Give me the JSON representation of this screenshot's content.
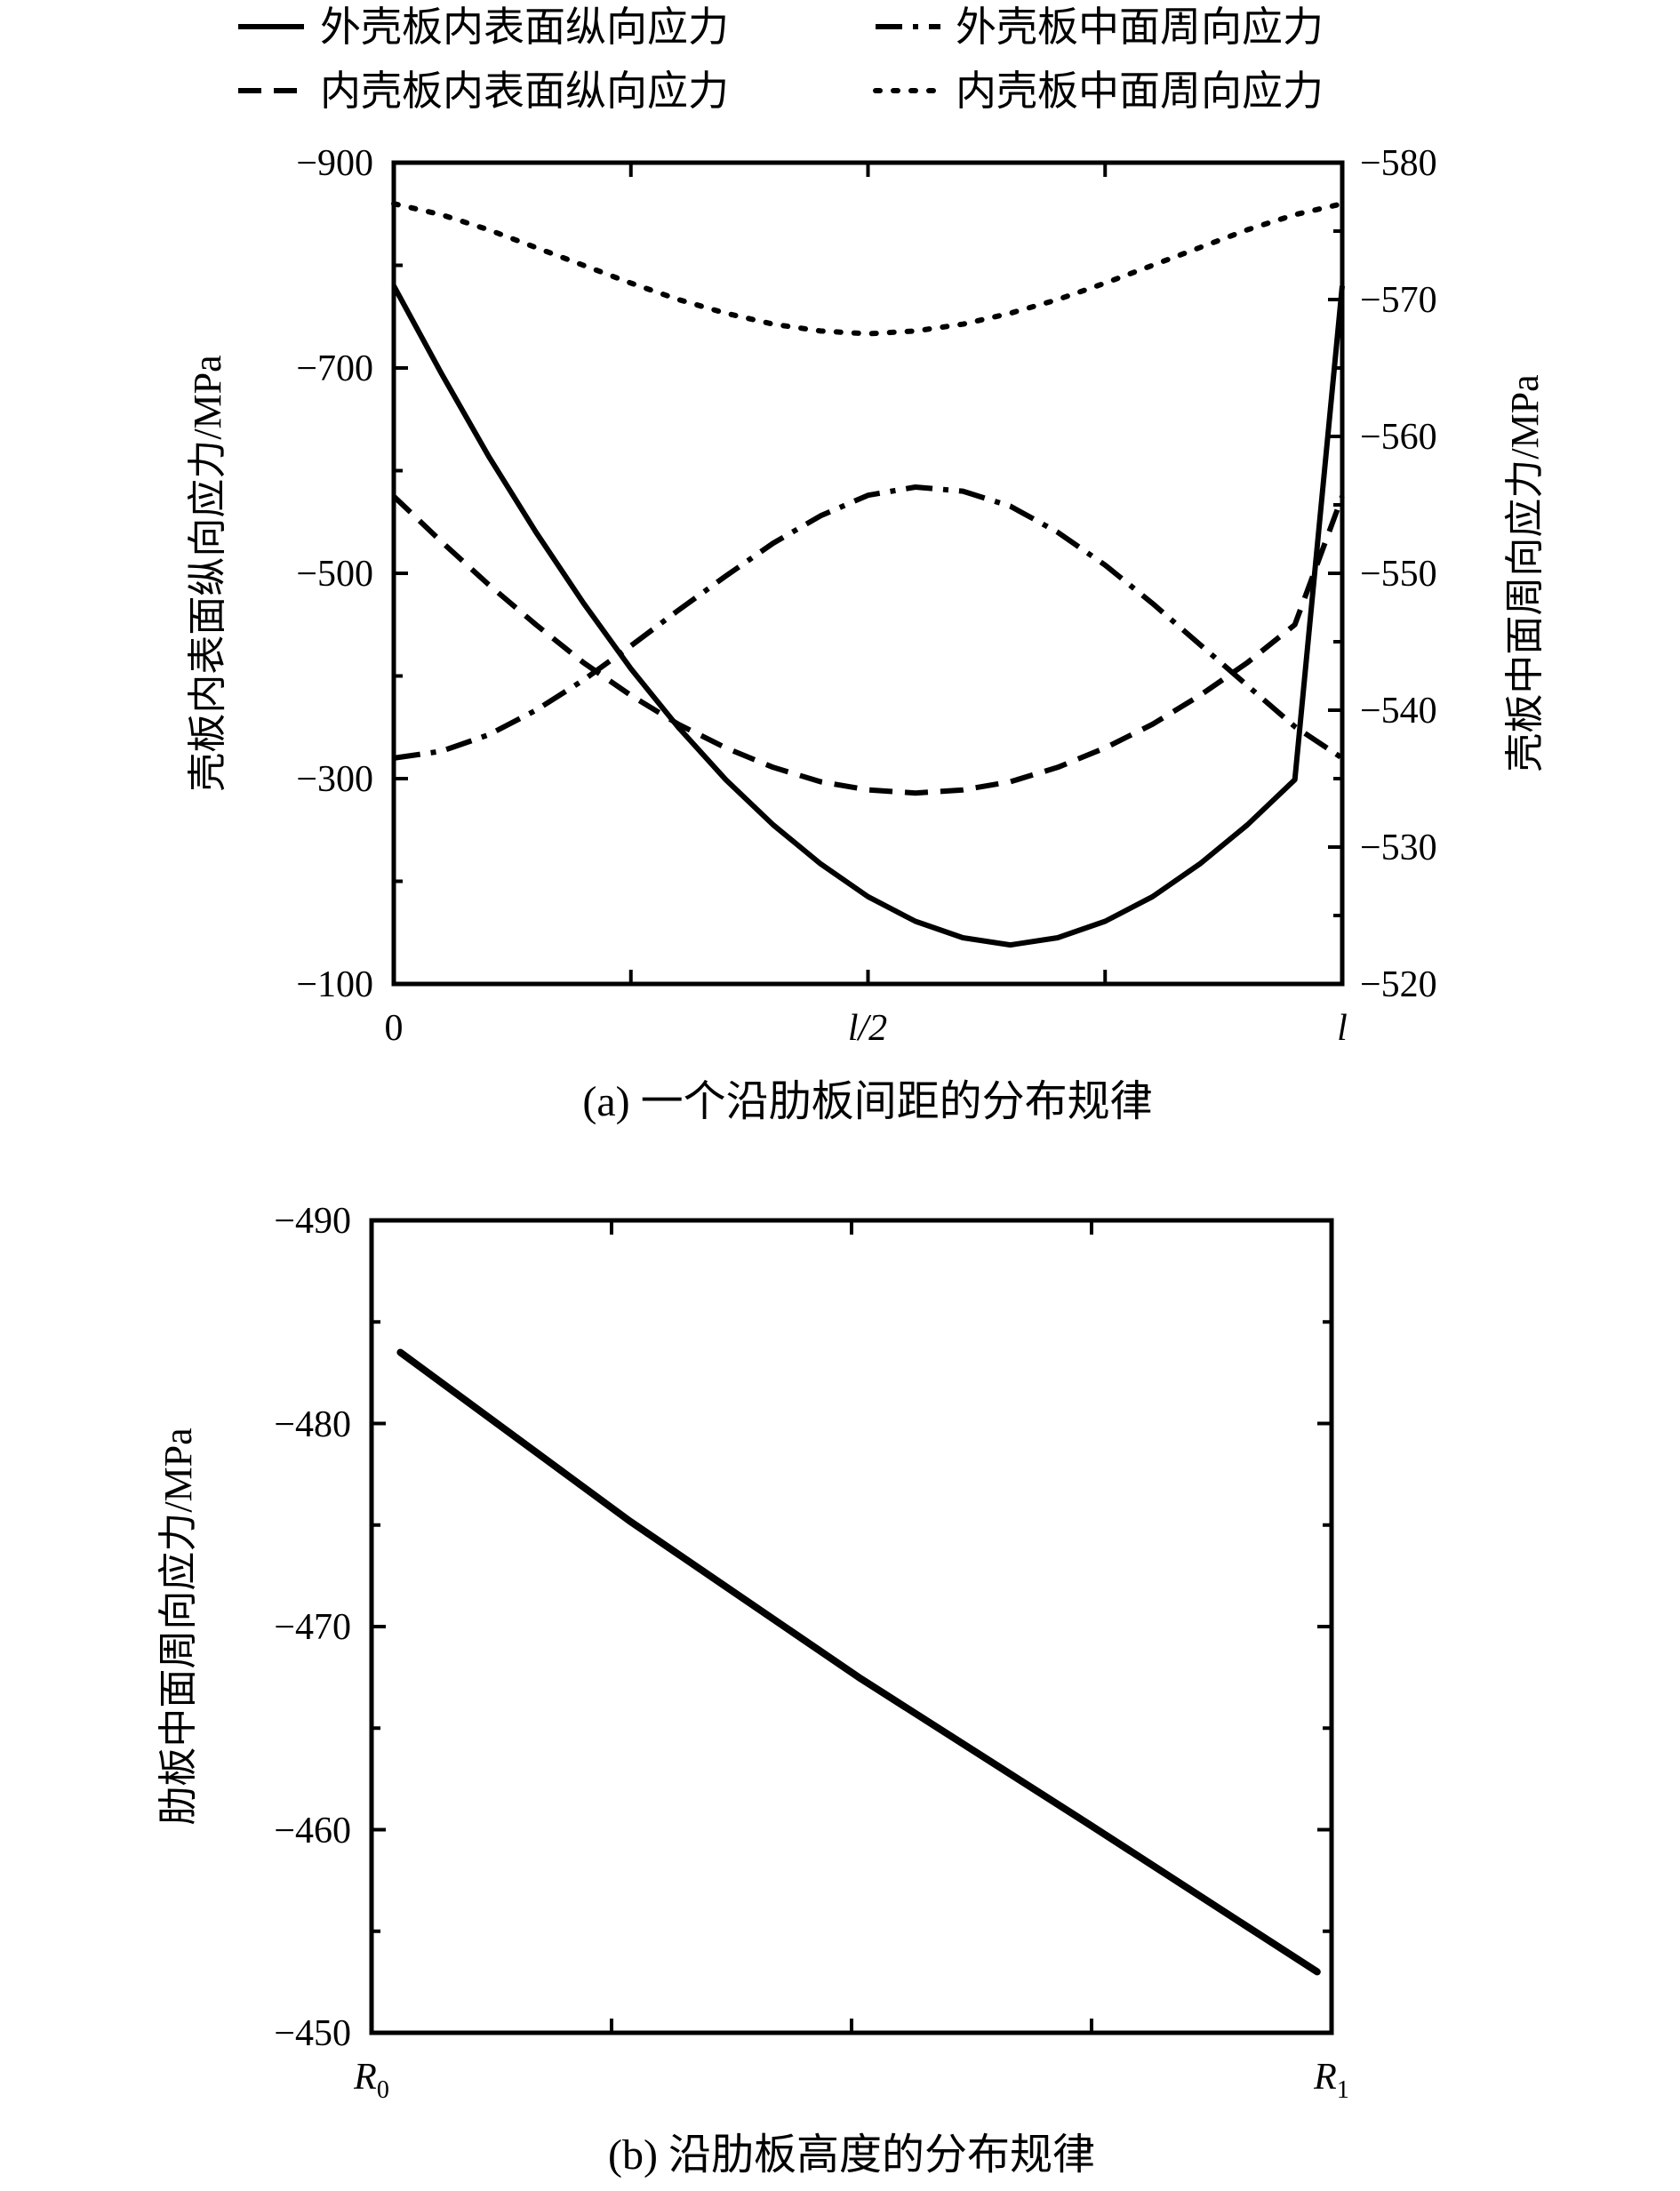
{
  "chart_data": [
    {
      "type": "line",
      "caption": "(a) 一个沿肋板间距的分布规律",
      "xlabel": "",
      "x_tick_labels": [
        "0",
        "l/2",
        "l"
      ],
      "x": [
        0,
        0.05,
        0.1,
        0.15,
        0.2,
        0.25,
        0.3,
        0.35,
        0.4,
        0.45,
        0.5,
        0.55,
        0.6,
        0.65,
        0.7,
        0.75,
        0.8,
        0.85,
        0.9,
        0.95,
        1
      ],
      "y_left": {
        "label": "壳板内表面纵向应力/MPa",
        "ylim": [
          -100,
          -900
        ],
        "ticks": [
          "−100",
          "−300",
          "−500",
          "−700",
          "−900"
        ]
      },
      "y_right": {
        "label": "壳板中面周向应力/MPa",
        "ylim": [
          -520,
          -580
        ],
        "ticks": [
          "−520",
          "−530",
          "−540",
          "−550",
          "−560",
          "−570",
          "−580"
        ]
      },
      "series": [
        {
          "name": "外壳板内表面纵向应力",
          "axis": "left",
          "style": "solid",
          "values": [
            -780,
            -695,
            -614,
            -540,
            -471,
            -407,
            -350,
            -299,
            -255,
            -217,
            -185,
            -161,
            -145,
            -138,
            -145,
            -161,
            -185,
            -217,
            -255,
            -299,
            -780
          ]
        },
        {
          "name": "外壳板中面周向应力",
          "axis": "right",
          "style": "dashdot",
          "values": [
            -536.5,
            -537.0,
            -538.2,
            -540.0,
            -542.2,
            -544.7,
            -547.3,
            -549.8,
            -552.2,
            -554.2,
            -555.7,
            -556.3,
            -556.0,
            -554.9,
            -553.0,
            -550.6,
            -547.8,
            -544.8,
            -541.8,
            -538.8,
            -536.5
          ]
        },
        {
          "name": "内壳板内表面纵向应力",
          "axis": "left",
          "style": "dashed",
          "values": [
            -575,
            -531,
            -489,
            -450,
            -413,
            -381,
            -353,
            -330,
            -311,
            -297,
            -289,
            -286,
            -289,
            -297,
            -311,
            -330,
            -353,
            -381,
            -413,
            -450,
            -575
          ]
        },
        {
          "name": "内壳板中面周向应力",
          "axis": "right",
          "style": "dotted",
          "values": [
            -577.0,
            -576.2,
            -575.1,
            -573.8,
            -572.5,
            -571.2,
            -570.0,
            -569.0,
            -568.2,
            -567.7,
            -567.5,
            -567.7,
            -568.2,
            -569.0,
            -570.0,
            -571.2,
            -572.5,
            -573.8,
            -575.1,
            -576.2,
            -577.0
          ]
        }
      ]
    },
    {
      "type": "line",
      "caption": "(b) 沿肋板高度的分布规律",
      "xlabel": "",
      "x_tick_labels": [
        {
          "base": "R",
          "sub": "0"
        },
        {
          "base": "R",
          "sub": "1"
        }
      ],
      "x": [
        0,
        0.25,
        0.5,
        0.75,
        1.0
      ],
      "ylabel": "肋板中面周向应力/MPa",
      "ylim": [
        -450,
        -490
      ],
      "y_ticks": [
        "−450",
        "−460",
        "−470",
        "−480",
        "−490"
      ],
      "series": [
        {
          "name": "肋板中面周向应力",
          "style": "solid",
          "values": [
            -483.5,
            -475.2,
            -467.5,
            -460.3,
            -453.0
          ]
        }
      ]
    }
  ]
}
